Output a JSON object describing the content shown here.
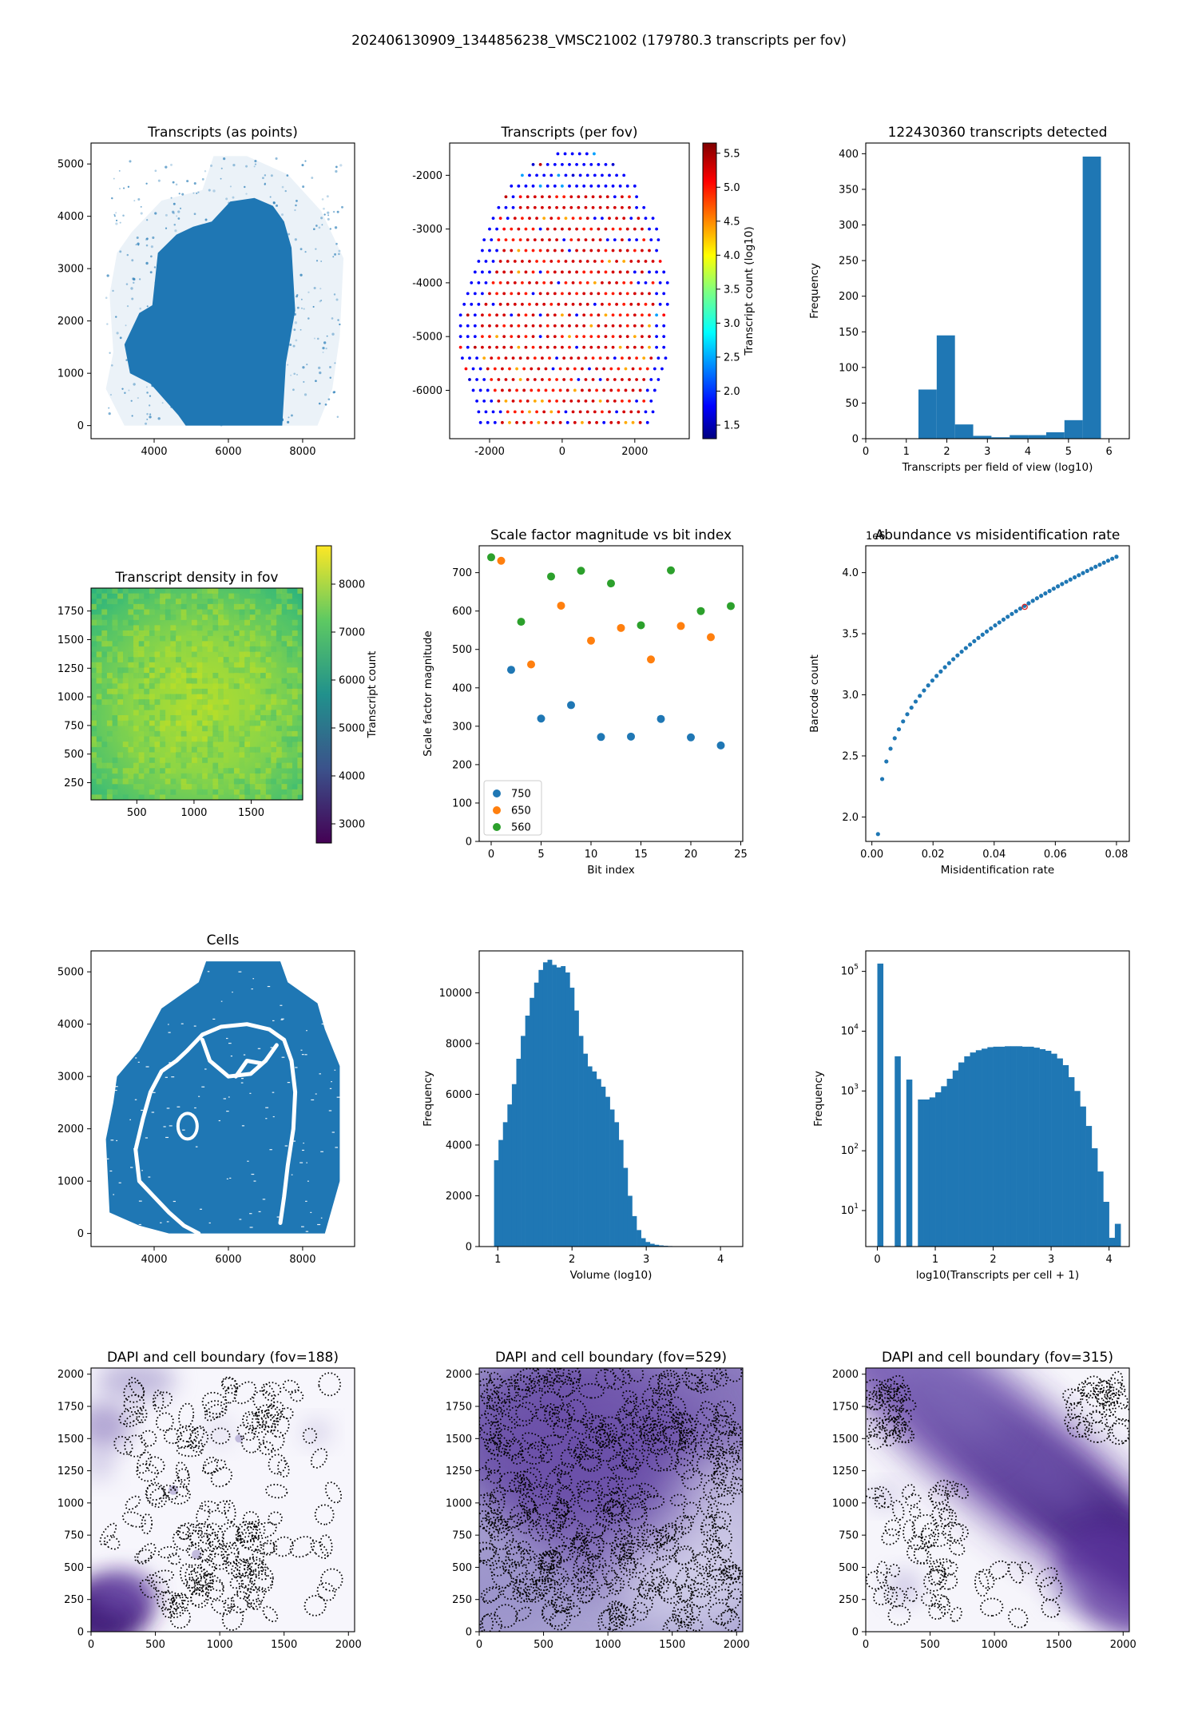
{
  "figure_title": "202406130909_1344856238_VMSC21002 (179780.3 transcripts per fov)",
  "colors": {
    "blue": "#1f77b4",
    "orange": "#ff7f0e",
    "green": "#2ca02c",
    "purple": "#5a2d91"
  },
  "chart_data": [
    {
      "id": "p1",
      "type": "scatter",
      "title": "Transcripts (as points)",
      "xlabel": "",
      "ylabel": "",
      "xlim": [
        2300,
        9400
      ],
      "ylim": [
        -250,
        5400
      ],
      "xticks": [
        4000,
        6000,
        8000
      ],
      "yticks": [
        0,
        1000,
        2000,
        3000,
        4000,
        5000
      ],
      "tissue_outline": [
        [
          4850,
          0
        ],
        [
          7450,
          0
        ],
        [
          7550,
          1200
        ],
        [
          7800,
          2200
        ],
        [
          7700,
          3400
        ],
        [
          7500,
          3900
        ],
        [
          7200,
          4200
        ],
        [
          6700,
          4350
        ],
        [
          6050,
          4280
        ],
        [
          5550,
          3900
        ],
        [
          5050,
          3800
        ],
        [
          4600,
          3650
        ],
        [
          4100,
          3300
        ],
        [
          3950,
          2300
        ],
        [
          3600,
          2150
        ],
        [
          3200,
          1550
        ],
        [
          3350,
          1000
        ],
        [
          3900,
          800
        ],
        [
          4650,
          200
        ]
      ],
      "sparse_region": [
        [
          2700,
          700
        ],
        [
          2900,
          1400
        ],
        [
          2800,
          2500
        ],
        [
          3000,
          3300
        ],
        [
          3400,
          3700
        ],
        [
          4200,
          4300
        ],
        [
          5300,
          4500
        ],
        [
          5600,
          5150
        ],
        [
          6500,
          5150
        ],
        [
          7600,
          4800
        ],
        [
          8500,
          4100
        ],
        [
          9100,
          3200
        ],
        [
          9000,
          1700
        ],
        [
          8800,
          700
        ],
        [
          8400,
          0
        ],
        [
          3200,
          0
        ]
      ]
    },
    {
      "id": "p2",
      "type": "scatter",
      "title": "Transcripts (per fov)",
      "colorbar_label": "Transcript count (log10)",
      "xlim": [
        -3100,
        3500
      ],
      "ylim": [
        -6900,
        -1400
      ],
      "xticks": [
        -2000,
        0,
        2000
      ],
      "yticks": [
        -6000,
        -5000,
        -4000,
        -3000,
        -2000
      ],
      "cbar_range": [
        1.3,
        5.65
      ],
      "cbar_ticks": [
        1.5,
        2.0,
        2.5,
        3.0,
        3.5,
        4.0,
        4.5,
        5.0,
        5.5
      ],
      "grid_rows": [
        {
          "y": -1600,
          "x0": -120,
          "x1": 1000
        },
        {
          "y": -1800,
          "x0": -800,
          "x1": 1400
        },
        {
          "y": -2000,
          "x0": -1100,
          "x1": 1800
        },
        {
          "y": -2200,
          "x0": -1400,
          "x1": 2000
        },
        {
          "y": -2400,
          "x0": -1550,
          "x1": 2200
        },
        {
          "y": -2600,
          "x0": -1750,
          "x1": 2350
        },
        {
          "y": -2800,
          "x0": -1900,
          "x1": 2500
        },
        {
          "y": -3000,
          "x0": -2000,
          "x1": 2600
        },
        {
          "y": -3200,
          "x0": -2150,
          "x1": 2700
        },
        {
          "y": -3400,
          "x0": -2200,
          "x1": 2750
        },
        {
          "y": -3600,
          "x0": -2300,
          "x1": 2850
        },
        {
          "y": -3800,
          "x0": -2400,
          "x1": 2900
        },
        {
          "y": -4000,
          "x0": -2500,
          "x1": 2900
        },
        {
          "y": -4200,
          "x0": -2600,
          "x1": 2900
        },
        {
          "y": -4400,
          "x0": -2700,
          "x1": 2900
        },
        {
          "y": -4600,
          "x0": -2800,
          "x1": 2900
        },
        {
          "y": -4800,
          "x0": -2800,
          "x1": 2900
        },
        {
          "y": -5000,
          "x0": -2800,
          "x1": 2900
        },
        {
          "y": -5200,
          "x0": -2800,
          "x1": 2900
        },
        {
          "y": -5400,
          "x0": -2750,
          "x1": 2850
        },
        {
          "y": -5600,
          "x0": -2650,
          "x1": 2800
        },
        {
          "y": -5800,
          "x0": -2550,
          "x1": 2700
        },
        {
          "y": -6000,
          "x0": -2450,
          "x1": 2650
        },
        {
          "y": -6200,
          "x0": -2350,
          "x1": 2600
        },
        {
          "y": -6400,
          "x0": -2300,
          "x1": 2550
        },
        {
          "y": -6600,
          "x0": -2250,
          "x1": 2500
        }
      ]
    },
    {
      "id": "p3",
      "type": "bar",
      "title": "122430360 transcripts detected",
      "xlabel": "Transcripts per field of view (log10)",
      "ylabel": "Frequency",
      "xlim": [
        0,
        6.5
      ],
      "ylim": [
        0,
        415
      ],
      "xticks": [
        0,
        1,
        2,
        3,
        4,
        5,
        6
      ],
      "yticks": [
        0,
        50,
        100,
        150,
        200,
        250,
        300,
        350,
        400
      ],
      "bin_edges": [
        1.3,
        1.75,
        2.2,
        2.65,
        3.1,
        3.55,
        4.0,
        4.45,
        4.9,
        5.35,
        5.8
      ],
      "values": [
        69,
        145,
        20,
        4,
        2,
        5,
        5,
        9,
        26,
        396
      ]
    },
    {
      "id": "p4",
      "type": "heatmap",
      "title": "Transcript density in fov",
      "colorbar_label": "Transcript count",
      "xlim": [
        100,
        1950
      ],
      "ylim": [
        100,
        1950
      ],
      "xticks": [
        500,
        1000,
        1500
      ],
      "yticks": [
        250,
        500,
        750,
        1000,
        1250,
        1500,
        1750
      ],
      "cbar_range": [
        2600,
        8800
      ],
      "cbar_ticks": [
        3000,
        4000,
        5000,
        6000,
        7000,
        8000
      ]
    },
    {
      "id": "p5",
      "type": "scatter",
      "title": "Scale factor magnitude vs bit index",
      "xlabel": "Bit index",
      "ylabel": "Scale factor magnitude",
      "xlim": [
        -1.2,
        25.2
      ],
      "ylim": [
        0,
        770
      ],
      "xticks": [
        0,
        5,
        10,
        15,
        20,
        25
      ],
      "yticks": [
        0,
        100,
        200,
        300,
        400,
        500,
        600,
        700
      ],
      "series": [
        {
          "name": "750",
          "color": "#1f77b4",
          "x": [
            2,
            5,
            8,
            11,
            14,
            17,
            20,
            23
          ],
          "y": [
            447,
            320,
            355,
            272,
            273,
            319,
            271,
            250
          ]
        },
        {
          "name": "650",
          "color": "#ff7f0e",
          "x": [
            1,
            4,
            7,
            10,
            13,
            16,
            19,
            22
          ],
          "y": [
            731,
            461,
            614,
            523,
            556,
            474,
            561,
            532
          ]
        },
        {
          "name": "560",
          "color": "#2ca02c",
          "x": [
            0,
            3,
            6,
            9,
            12,
            15,
            18,
            21,
            24
          ],
          "y": [
            740,
            572,
            690,
            705,
            672,
            563,
            706,
            600,
            613
          ]
        }
      ]
    },
    {
      "id": "p6",
      "type": "scatter",
      "title": "Abundance vs misidentification rate",
      "xlabel": "Misidentification rate",
      "ylabel": "Barcode count",
      "offset_label": "1e6",
      "xlim": [
        -0.002,
        0.0842
      ],
      "ylim": [
        1.8,
        4.22
      ],
      "xticks": [
        0.0,
        0.02,
        0.04,
        0.06,
        0.08
      ],
      "xtick_labels": [
        "0.00",
        "0.02",
        "0.04",
        "0.06",
        "0.08"
      ],
      "yticks": [
        2.0,
        2.5,
        3.0,
        3.5,
        4.0
      ],
      "ytick_labels": [
        "2.0",
        "2.5",
        "3.0",
        "3.5",
        "4.0"
      ],
      "curve": {
        "x_start": 0.002,
        "x_end": 0.08,
        "n": 58,
        "y_start": 1.86,
        "y_end": 4.13,
        "power": 0.4
      },
      "highlight": {
        "x": 0.05,
        "y": 3.72
      }
    },
    {
      "id": "p7",
      "type": "scatter",
      "title": "Cells",
      "xlim": [
        2300,
        9400
      ],
      "ylim": [
        -250,
        5400
      ],
      "xticks": [
        4000,
        6000,
        8000
      ],
      "yticks": [
        0,
        1000,
        2000,
        3000,
        4000,
        5000
      ],
      "region": [
        [
          5400,
          5200
        ],
        [
          7400,
          5200
        ],
        [
          7600,
          4800
        ],
        [
          8400,
          4400
        ],
        [
          8600,
          3900
        ],
        [
          9000,
          3200
        ],
        [
          9000,
          1000
        ],
        [
          8600,
          0
        ],
        [
          4400,
          0
        ],
        [
          3600,
          150
        ],
        [
          2800,
          400
        ],
        [
          2700,
          1800
        ],
        [
          2900,
          2500
        ],
        [
          3000,
          3000
        ],
        [
          3600,
          3500
        ],
        [
          4200,
          4300
        ],
        [
          5200,
          4800
        ]
      ]
    },
    {
      "id": "p8",
      "type": "bar",
      "title": "",
      "xlabel": "Volume (log10)",
      "ylabel": "Frequency",
      "xlim": [
        0.75,
        4.3
      ],
      "ylim": [
        0,
        11650
      ],
      "xticks": [
        1,
        2,
        3,
        4
      ],
      "yticks": [
        0,
        2000,
        4000,
        6000,
        8000,
        10000
      ],
      "bin_start": 0.95,
      "bin_width": 0.06,
      "values": [
        3400,
        4200,
        4900,
        5600,
        6400,
        7400,
        8300,
        9100,
        9800,
        10400,
        10900,
        11200,
        11300,
        11100,
        11000,
        11050,
        10800,
        10200,
        9300,
        8300,
        7600,
        7100,
        6900,
        6600,
        6300,
        5900,
        5400,
        4900,
        4200,
        3100,
        2000,
        1200,
        650,
        330,
        180,
        110,
        70,
        45,
        30,
        20,
        12,
        8
      ]
    },
    {
      "id": "p9",
      "type": "bar",
      "title": "",
      "xlabel": "log10(Transcripts per cell + 1)",
      "ylabel": "Frequency",
      "yscale": "log",
      "xlim": [
        -0.2,
        4.35
      ],
      "ylim": [
        2.5,
        220000
      ],
      "xticks": [
        0,
        1,
        2,
        3,
        4
      ],
      "yticks": [
        10,
        100,
        1000,
        10000,
        100000
      ],
      "ytick_base": "10",
      "ytick_exps": [
        "1",
        "2",
        "3",
        "4",
        "5"
      ],
      "bin_start": 0.0,
      "bin_width": 0.1,
      "values": [
        135000,
        0,
        0,
        3800,
        0,
        1550,
        0,
        720,
        720,
        780,
        950,
        1200,
        1600,
        2200,
        3000,
        3800,
        4400,
        4800,
        5100,
        5400,
        5500,
        5500,
        5600,
        5600,
        5600,
        5500,
        5500,
        5300,
        5000,
        4700,
        4200,
        3500,
        2700,
        1700,
        1000,
        550,
        260,
        110,
        45,
        14,
        3.5,
        6
      ]
    },
    {
      "id": "p10",
      "type": "heatmap",
      "title": "DAPI and cell boundary (fov=188)",
      "xlim": [
        0,
        2048
      ],
      "ylim": [
        0,
        2048
      ],
      "xticks": [
        0,
        500,
        1000,
        1500,
        2000
      ],
      "yticks": [
        0,
        250,
        500,
        750,
        1000,
        1250,
        1500,
        1750,
        2000
      ]
    },
    {
      "id": "p11",
      "type": "heatmap",
      "title": "DAPI and cell boundary (fov=529)",
      "xlim": [
        0,
        2048
      ],
      "ylim": [
        0,
        2048
      ],
      "xticks": [
        0,
        500,
        1000,
        1500,
        2000
      ],
      "yticks": [
        0,
        250,
        500,
        750,
        1000,
        1250,
        1500,
        1750,
        2000
      ]
    },
    {
      "id": "p12",
      "type": "heatmap",
      "title": "DAPI and cell boundary (fov=315)",
      "xlim": [
        0,
        2048
      ],
      "ylim": [
        0,
        2048
      ],
      "xticks": [
        0,
        500,
        1000,
        1500,
        2000
      ],
      "yticks": [
        0,
        250,
        500,
        750,
        1000,
        1250,
        1500,
        1750,
        2000
      ]
    }
  ]
}
